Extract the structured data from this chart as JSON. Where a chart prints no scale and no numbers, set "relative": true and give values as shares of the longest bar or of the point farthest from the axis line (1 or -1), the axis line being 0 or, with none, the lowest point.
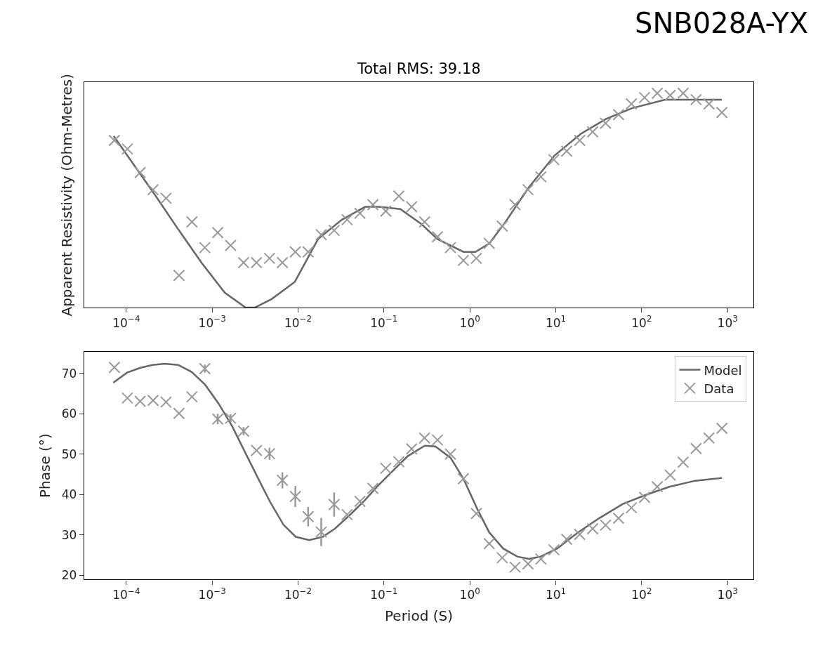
{
  "chart_data": [
    {
      "type": "line",
      "title": "SNB028A-YX",
      "subtitle": "Total RMS: 39.18",
      "ylabel": "Apparent Resistivity (Ohm-Metres)",
      "relative": true,
      "log": "x",
      "legend": false,
      "xlim": [
        3.24e-05,
        2000
      ],
      "xticks": [
        {
          "value": 0.0001,
          "label": "10$^{−4}$"
        },
        {
          "value": 0.001,
          "label": "10$^{−3}$"
        },
        {
          "value": 0.01,
          "label": "10$^{−2}$"
        },
        {
          "value": 0.1,
          "label": "10$^{−1}$"
        },
        {
          "value": 1,
          "label": "10$^{0}$"
        },
        {
          "value": 10,
          "label": "10$^{1}$"
        },
        {
          "value": 100,
          "label": "10$^{2}$"
        },
        {
          "value": 1000,
          "label": "10$^{3}$"
        }
      ],
      "series": [
        {
          "color": "#666666",
          "line_style": "solid",
          "marker": "none",
          "x": [
            7.13e-05,
            0.000212,
            0.000395,
            0.00075,
            0.0014,
            0.00245,
            0.00313,
            0.00493,
            0.00916,
            0.0171,
            0.0324,
            0.0603,
            0.0879,
            0.155,
            0.272,
            0.419,
            0.841,
            1.16,
            1.69,
            2.6,
            4.84,
            9.72,
            19.5,
            38.5,
            77.1,
            187,
            348,
            859
          ],
          "values": [
            0.8,
            0.53,
            0.37,
            0.21,
            0.07,
            0,
            0,
            0.04,
            0.12,
            0.32,
            0.41,
            0.47,
            0.47,
            0.46,
            0.39,
            0.32,
            0.26,
            0.26,
            0.3,
            0.4,
            0.56,
            0.71,
            0.81,
            0.88,
            0.93,
            0.97,
            0.97,
            0.97
          ]
        },
        {
          "type": "scatter",
          "color": "#999999",
          "marker": "cross",
          "x": [
            7.26e-05,
            0.000103,
            0.000145,
            0.000205,
            0.00029,
            0.000411,
            0.000581,
            0.000821,
            0.00116,
            0.00164,
            0.00232,
            0.00328,
            0.00465,
            0.00657,
            0.00929,
            0.0131,
            0.0186,
            0.0263,
            0.0372,
            0.0525,
            0.0743,
            0.105,
            0.149,
            0.21,
            0.297,
            0.42,
            0.594,
            0.84,
            1.19,
            1.68,
            2.38,
            3.36,
            4.75,
            6.72,
            9.51,
            13.4,
            19.0,
            26.9,
            38.0,
            53.8,
            76.0,
            108,
            152,
            215,
            304,
            430,
            608,
            860
          ],
          "values": [
            0.78,
            0.74,
            0.63,
            0.55,
            0.51,
            0.15,
            0.4,
            0.28,
            0.35,
            0.29,
            0.21,
            0.21,
            0.23,
            0.21,
            0.26,
            0.26,
            0.34,
            0.36,
            0.41,
            0.44,
            0.48,
            0.45,
            0.52,
            0.47,
            0.4,
            0.33,
            0.28,
            0.22,
            0.23,
            0.3,
            0.38,
            0.48,
            0.55,
            0.61,
            0.69,
            0.73,
            0.78,
            0.82,
            0.86,
            0.9,
            0.95,
            0.98,
            1.0,
            0.99,
            1.0,
            0.97,
            0.95,
            0.91
          ]
        }
      ]
    },
    {
      "type": "line",
      "xlabel": "Period (S)",
      "ylabel": "Phase (°)",
      "log": "x",
      "legend": "top right",
      "xlim": [
        3.24e-05,
        2000
      ],
      "xticks": [
        {
          "value": 0.0001,
          "label": "10$^{−4}$"
        },
        {
          "value": 0.001,
          "label": "10$^{−3}$"
        },
        {
          "value": 0.01,
          "label": "10$^{−2}$"
        },
        {
          "value": 0.1,
          "label": "10$^{−1}$"
        },
        {
          "value": 1,
          "label": "10$^{0}$"
        },
        {
          "value": 10,
          "label": "10$^{1}$"
        },
        {
          "value": 100,
          "label": "10$^{2}$"
        },
        {
          "value": 1000,
          "label": "10$^{3}$"
        }
      ],
      "ylim": [
        18.9,
        75.4
      ],
      "yticks": [
        20,
        30,
        40,
        50,
        60,
        70
      ],
      "series": [
        {
          "name": "Model",
          "color": "#666666",
          "line_style": "solid",
          "marker": "none",
          "x": [
            7.06e-05,
            0.000102,
            0.000146,
            0.000202,
            0.000279,
            0.000402,
            0.000575,
            0.000828,
            0.00119,
            0.00171,
            0.00245,
            0.00352,
            0.00471,
            0.00676,
            0.00938,
            0.0135,
            0.0193,
            0.0268,
            0.0414,
            0.0594,
            0.0853,
            0.122,
            0.189,
            0.299,
            0.396,
            0.596,
            0.841,
            1.22,
            1.68,
            2.44,
            3.56,
            4.88,
            6.67,
            10.4,
            18.2,
            32.0,
            60.0,
            112,
            210,
            420,
            863
          ],
          "values": [
            67.7,
            70.2,
            71.4,
            72.1,
            72.4,
            72.1,
            70.4,
            67.2,
            62.5,
            56.9,
            50.2,
            43.5,
            38.2,
            32.5,
            29.5,
            28.7,
            29.5,
            31.5,
            35.2,
            38.5,
            42.2,
            45.5,
            49.5,
            52.1,
            51.9,
            49.1,
            43.9,
            36.4,
            30.6,
            26.6,
            24.6,
            24.0,
            24.6,
            26.6,
            30.6,
            34.1,
            37.6,
            39.9,
            41.9,
            43.4,
            44.1
          ]
        },
        {
          "type": "scatter",
          "name": "Data",
          "color": "#999999",
          "marker": "cross",
          "x": [
            7.26e-05,
            0.000103,
            0.000145,
            0.000205,
            0.00029,
            0.000411,
            0.000581,
            0.000821,
            0.00116,
            0.00164,
            0.00232,
            0.00328,
            0.00465,
            0.00657,
            0.00929,
            0.0131,
            0.0186,
            0.0263,
            0.0372,
            0.0525,
            0.0743,
            0.105,
            0.149,
            0.21,
            0.297,
            0.42,
            0.594,
            0.84,
            1.19,
            1.68,
            2.38,
            3.36,
            4.75,
            6.72,
            9.51,
            13.4,
            19.0,
            26.9,
            38.0,
            53.8,
            76.0,
            108,
            152,
            215,
            304,
            430,
            608,
            860
          ],
          "values": [
            71.5,
            63.9,
            63.1,
            63.3,
            62.9,
            60.1,
            64.2,
            71.2,
            58.7,
            58.9,
            55.7,
            50.9,
            50.1,
            43.5,
            39.5,
            34.5,
            30.7,
            37.5,
            35.0,
            38.3,
            41.5,
            46.5,
            48.1,
            51.3,
            54.0,
            53.5,
            50.0,
            43.9,
            35.3,
            27.8,
            24.3,
            22.0,
            22.8,
            24.0,
            26.3,
            28.9,
            30.1,
            31.5,
            32.4,
            34.1,
            36.7,
            39.3,
            41.9,
            44.8,
            48.0,
            51.4,
            54.0,
            56.4
          ],
          "errors": [
            null,
            null,
            null,
            null,
            null,
            null,
            null,
            1,
            1.3,
            1,
            1,
            null,
            1.5,
            2,
            2.6,
            2.4,
            3.5,
            3,
            null,
            null,
            null,
            null,
            null,
            null,
            null,
            null,
            null,
            null,
            null,
            null,
            null,
            null,
            null,
            null,
            null,
            null,
            null,
            null,
            null,
            null,
            null,
            null,
            null,
            null,
            null,
            null,
            null,
            null
          ]
        }
      ]
    }
  ]
}
